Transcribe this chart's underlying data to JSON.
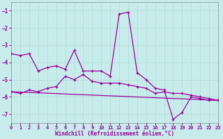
{
  "background_color": "#c8ecec",
  "line_color": "#990099",
  "xlabel": "Windchill (Refroidissement éolien,°C)",
  "xlim": [
    0,
    23
  ],
  "ylim": [
    -7.5,
    -0.5
  ],
  "yticks": [
    -7,
    -6,
    -5,
    -4,
    -3,
    -2,
    -1
  ],
  "xticks": [
    0,
    1,
    2,
    3,
    4,
    5,
    6,
    7,
    8,
    9,
    10,
    11,
    12,
    13,
    14,
    15,
    16,
    17,
    18,
    19,
    20,
    21,
    22,
    23
  ],
  "series1_x": [
    0,
    1,
    2,
    3,
    4,
    5,
    6,
    7,
    8,
    9,
    10,
    11,
    12,
    13,
    14,
    15,
    16,
    17,
    18,
    19,
    20,
    21,
    22,
    23
  ],
  "series1_y": [
    -3.5,
    -3.6,
    -3.5,
    -4.5,
    -4.3,
    -4.2,
    -4.4,
    -3.3,
    -4.5,
    -4.5,
    -4.5,
    -4.8,
    -1.2,
    -1.1,
    -4.6,
    -5.0,
    -5.5,
    -5.6,
    -7.3,
    -6.9,
    -6.0,
    -6.1,
    -6.2,
    -6.2
  ],
  "series2_x": [
    0,
    1,
    2,
    3,
    4,
    5,
    6,
    7,
    8,
    9,
    10,
    11,
    12,
    13,
    14,
    15,
    16,
    17,
    18,
    19,
    20,
    21,
    22,
    23
  ],
  "series2_y": [
    -5.7,
    -5.8,
    -5.6,
    -5.7,
    -5.5,
    -5.4,
    -4.8,
    -5.0,
    -4.7,
    -5.1,
    -5.2,
    -5.2,
    -5.2,
    -5.3,
    -5.4,
    -5.5,
    -5.8,
    -5.7,
    -5.8,
    -5.8,
    -5.9,
    -6.0,
    -6.1,
    -6.2
  ],
  "series3_x": [
    0,
    23
  ],
  "series3_y": [
    -5.7,
    -6.2
  ]
}
